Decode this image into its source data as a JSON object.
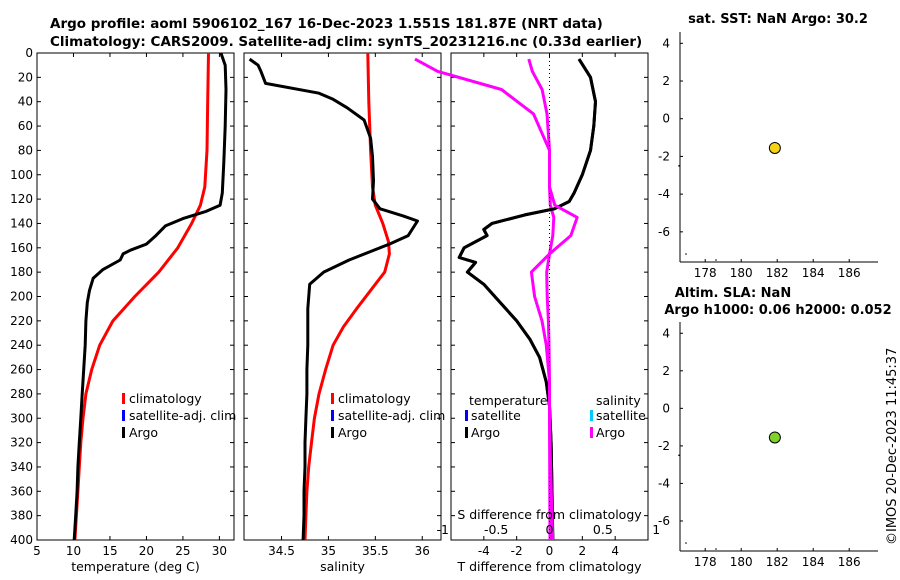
{
  "title": {
    "line1": "Argo profile: aoml 5906102_167 16-Dec-2023 1.551S 181.87E (NRT data)",
    "line2": "Climatology: CARS2009. Satellite-adj clim: synTS_20231216.nc (0.33d earlier)"
  },
  "watermark": "©IMOS 20-Dec-2023 11:45:37",
  "colors": {
    "climatology": "#ff0000",
    "satellite": "#0000ff",
    "satellite_s": "#00ccff",
    "argo": "#000000",
    "salinity_diff": "#ff00ff",
    "sst_marker": "#f5d314",
    "sla_marker": "#7fd22a"
  },
  "chart_data": [
    {
      "id": "temperature",
      "type": "line",
      "xlabel": "temperature (deg C)",
      "xlim": [
        5,
        32
      ],
      "ylim": [
        400,
        0
      ],
      "xticks": [
        5,
        10,
        15,
        20,
        25,
        30
      ],
      "yticks": [
        0,
        20,
        40,
        60,
        80,
        100,
        120,
        140,
        160,
        180,
        200,
        220,
        240,
        260,
        280,
        300,
        320,
        340,
        360,
        380,
        400
      ],
      "legend": [
        "climatology",
        "satellite-adj. clim",
        "Argo"
      ],
      "series": [
        {
          "name": "climatology",
          "color": "#ff0000",
          "points": [
            [
              28.5,
              0
            ],
            [
              28.4,
              40
            ],
            [
              28.3,
              80
            ],
            [
              28.0,
              110
            ],
            [
              27.4,
              125
            ],
            [
              26.2,
              140
            ],
            [
              24.3,
              160
            ],
            [
              21.7,
              180
            ],
            [
              18.4,
              200
            ],
            [
              15.4,
              220
            ],
            [
              13.6,
              240
            ],
            [
              12.5,
              260
            ],
            [
              11.7,
              280
            ],
            [
              11.3,
              300
            ],
            [
              11.0,
              320
            ],
            [
              10.8,
              340
            ],
            [
              10.6,
              360
            ],
            [
              10.4,
              380
            ],
            [
              10.2,
              400
            ]
          ]
        },
        {
          "name": "Argo",
          "color": "#000000",
          "points": [
            [
              30.2,
              0
            ],
            [
              30.8,
              10
            ],
            [
              30.9,
              30
            ],
            [
              30.8,
              60
            ],
            [
              30.6,
              90
            ],
            [
              30.4,
              115
            ],
            [
              30.1,
              125
            ],
            [
              28.2,
              130
            ],
            [
              25.0,
              136
            ],
            [
              22.6,
              142
            ],
            [
              21.3,
              150
            ],
            [
              20.0,
              157
            ],
            [
              17.8,
              162
            ],
            [
              16.8,
              165
            ],
            [
              16.4,
              170
            ],
            [
              14.0,
              178
            ],
            [
              12.7,
              185
            ],
            [
              12.2,
              195
            ],
            [
              11.9,
              205
            ],
            [
              11.7,
              220
            ],
            [
              11.6,
              240
            ],
            [
              11.4,
              260
            ],
            [
              11.2,
              280
            ],
            [
              11.0,
              300
            ],
            [
              10.8,
              320
            ],
            [
              10.6,
              340
            ],
            [
              10.5,
              360
            ],
            [
              10.3,
              380
            ],
            [
              10.1,
              400
            ]
          ]
        }
      ]
    },
    {
      "id": "salinity",
      "type": "line",
      "xlabel": "salinity",
      "xlim": [
        34.1,
        36.2
      ],
      "ylim": [
        400,
        0
      ],
      "xticks": [
        34.5,
        35,
        35.5,
        36
      ],
      "legend": [
        "climatology",
        "satellite-adj. clim",
        "Argo"
      ],
      "series": [
        {
          "name": "climatology",
          "color": "#ff0000",
          "points": [
            [
              35.42,
              0
            ],
            [
              35.43,
              40
            ],
            [
              35.45,
              80
            ],
            [
              35.47,
              110
            ],
            [
              35.5,
              125
            ],
            [
              35.58,
              140
            ],
            [
              35.64,
              155
            ],
            [
              35.65,
              165
            ],
            [
              35.6,
              180
            ],
            [
              35.45,
              195
            ],
            [
              35.3,
              210
            ],
            [
              35.16,
              225
            ],
            [
              35.05,
              240
            ],
            [
              34.97,
              260
            ],
            [
              34.9,
              280
            ],
            [
              34.85,
              300
            ],
            [
              34.82,
              320
            ],
            [
              34.79,
              340
            ],
            [
              34.77,
              360
            ],
            [
              34.76,
              380
            ],
            [
              34.75,
              400
            ]
          ]
        },
        {
          "name": "Argo",
          "color": "#000000",
          "points": [
            [
              34.16,
              5
            ],
            [
              34.25,
              10
            ],
            [
              34.28,
              15
            ],
            [
              34.33,
              25
            ],
            [
              34.9,
              33
            ],
            [
              35.05,
              38
            ],
            [
              35.2,
              45
            ],
            [
              35.38,
              55
            ],
            [
              35.45,
              70
            ],
            [
              35.47,
              85
            ],
            [
              35.48,
              105
            ],
            [
              35.47,
              120
            ],
            [
              35.55,
              128
            ],
            [
              35.8,
              134
            ],
            [
              35.95,
              138
            ],
            [
              35.85,
              150
            ],
            [
              35.65,
              157
            ],
            [
              35.45,
              163
            ],
            [
              35.22,
              170
            ],
            [
              34.95,
              180
            ],
            [
              34.8,
              190
            ],
            [
              34.78,
              210
            ],
            [
              34.78,
              240
            ],
            [
              34.77,
              260
            ],
            [
              34.77,
              280
            ],
            [
              34.76,
              300
            ],
            [
              34.75,
              320
            ],
            [
              34.75,
              340
            ],
            [
              34.74,
              360
            ],
            [
              34.74,
              380
            ],
            [
              34.73,
              400
            ]
          ]
        }
      ]
    },
    {
      "id": "difference",
      "type": "line",
      "xlabel": "T difference from climatology",
      "top_axis_label": "S difference from climatology",
      "xlim": [
        -6,
        6
      ],
      "ylim": [
        400,
        0
      ],
      "xticks": [
        -4,
        -2,
        0,
        2,
        4
      ],
      "s_xticks": [
        "-1",
        "-0.5",
        "0",
        "0.5",
        "1"
      ],
      "s_xticks_values": [
        -1,
        -0.5,
        0,
        0.5,
        1
      ],
      "legend_t_title": "temperature",
      "legend_s_title": "salinity",
      "legend_t": [
        "satellite",
        "Argo"
      ],
      "legend_s": [
        "satellite",
        "Argo"
      ],
      "series": [
        {
          "name": "T difference (Argo)",
          "color": "#000000",
          "points": [
            [
              1.8,
              5
            ],
            [
              2.5,
              20
            ],
            [
              2.8,
              40
            ],
            [
              2.7,
              60
            ],
            [
              2.5,
              80
            ],
            [
              2.0,
              100
            ],
            [
              1.5,
              115
            ],
            [
              1.2,
              122
            ],
            [
              0.3,
              128
            ],
            [
              -1.5,
              133
            ],
            [
              -3.5,
              140
            ],
            [
              -4.0,
              145
            ],
            [
              -3.8,
              150
            ],
            [
              -5.2,
              160
            ],
            [
              -5.5,
              168
            ],
            [
              -4.5,
              172
            ],
            [
              -5.0,
              180
            ],
            [
              -4.0,
              190
            ],
            [
              -3.0,
              205
            ],
            [
              -2.0,
              220
            ],
            [
              -1.2,
              235
            ],
            [
              -0.6,
              250
            ],
            [
              -0.2,
              270
            ],
            [
              0.0,
              290
            ],
            [
              0.1,
              320
            ],
            [
              0.15,
              360
            ],
            [
              0.2,
              400
            ]
          ]
        },
        {
          "name": "S difference (Argo)",
          "color": "#ff00ff",
          "points": [
            [
              -1.26,
              5
            ],
            [
              -1.05,
              15
            ],
            [
              -0.45,
              30
            ],
            [
              -0.15,
              50
            ],
            [
              0.0,
              80
            ],
            [
              0.0,
              110
            ],
            [
              0.05,
              125
            ],
            [
              0.26,
              135
            ],
            [
              0.2,
              150
            ],
            [
              0.0,
              165
            ],
            [
              -0.17,
              180
            ],
            [
              -0.14,
              200
            ],
            [
              -0.07,
              220
            ],
            [
              -0.03,
              240
            ],
            [
              0.0,
              270
            ],
            [
              0.0,
              300
            ],
            [
              0.01,
              340
            ],
            [
              0.02,
              370
            ],
            [
              0.03,
              400
            ]
          ]
        }
      ]
    },
    {
      "id": "sst",
      "type": "scatter",
      "title": "sat. SST: NaN Argo: 30.2",
      "xlim": [
        176.6,
        187.6
      ],
      "ylim": [
        -7.6,
        4.6
      ],
      "xticks": [
        178,
        180,
        182,
        184,
        186
      ],
      "yticks": [
        4,
        2,
        0,
        -2,
        -4,
        -6
      ],
      "points": [
        [
          181.87,
          -1.551
        ]
      ]
    },
    {
      "id": "sla",
      "type": "scatter",
      "title": "Altim. SLA: NaN",
      "subtitle": "Argo h1000: 0.06 h2000: 0.052",
      "xlim": [
        176.6,
        187.6
      ],
      "ylim": [
        -7.6,
        4.6
      ],
      "xticks": [
        178,
        180,
        182,
        184,
        186
      ],
      "yticks": [
        4,
        2,
        0,
        -2,
        -4,
        -6
      ],
      "points": [
        [
          181.87,
          -1.551
        ]
      ]
    }
  ]
}
